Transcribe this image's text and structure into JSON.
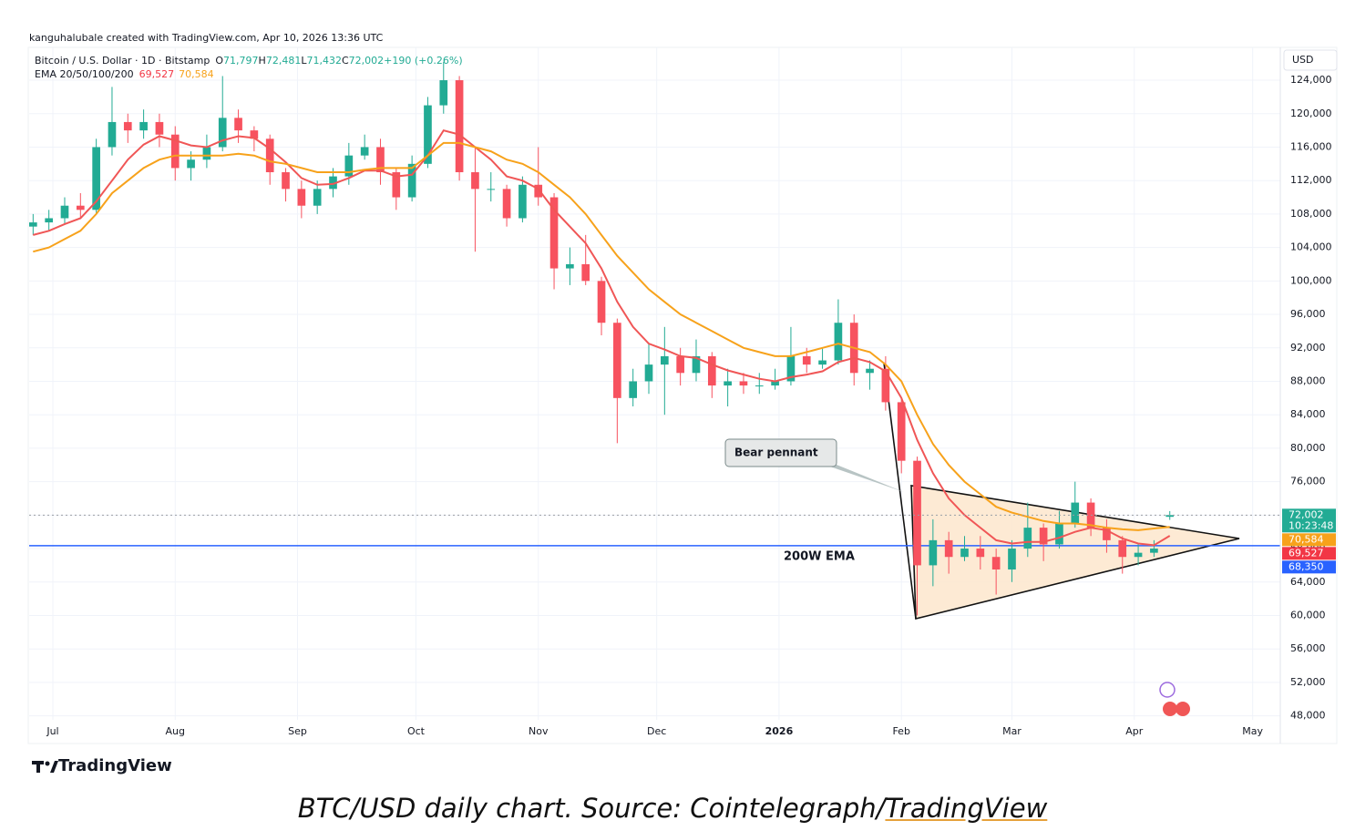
{
  "header": "kanguhalubale created with TradingView.com, Apr 10, 2026 13:36 UTC",
  "chart_data": {
    "type": "candlestick",
    "legend": {
      "symbol": "Bitcoin / U.S. Dollar · 1D · Bitstamp",
      "ohlc": [
        {
          "key": "O",
          "label": "71,797"
        },
        {
          "key": "H",
          "label": "72,481"
        },
        {
          "key": "L",
          "label": "71,432"
        },
        {
          "key": "C",
          "label": "72,002"
        }
      ],
      "change": "+190 (+0.26%)",
      "ema_name": "EMA 20/50/100/200"
    },
    "currency": "USD",
    "up_color": "#22ab94",
    "down_color": "#f7525f",
    "x": [
      -5,
      -1,
      3,
      7,
      11,
      15,
      19,
      23,
      27,
      31,
      35,
      39,
      43,
      47,
      51,
      55,
      59,
      63,
      67,
      71,
      75,
      79,
      83,
      87,
      91,
      95,
      99,
      103,
      107,
      111,
      115,
      119,
      123,
      127,
      131,
      135,
      139,
      143,
      147,
      151,
      155,
      159,
      163,
      167,
      171,
      175,
      179,
      183,
      187,
      191,
      195,
      199,
      203,
      207,
      211,
      215,
      219,
      223,
      227,
      231,
      235,
      239,
      243,
      247,
      251,
      255,
      259,
      263,
      267,
      271,
      275,
      279,
      283
    ],
    "open": [
      106500,
      107000,
      107500,
      109000,
      108500,
      116000,
      119000,
      118000,
      119000,
      117500,
      113500,
      114500,
      116000,
      119500,
      118000,
      117000,
      113000,
      111000,
      109000,
      111000,
      112500,
      115000,
      116000,
      113000,
      110000,
      114000,
      121000,
      124000,
      113000,
      111000,
      111000,
      107500,
      111500,
      110000,
      101500,
      102000,
      100000,
      95000,
      86000,
      88000,
      90000,
      91000,
      89000,
      91000,
      87500,
      88000,
      87500,
      87500,
      88000,
      91000,
      90000,
      90500,
      95000,
      89000,
      89500,
      85500,
      78500,
      66000,
      69000,
      67000,
      68000,
      67000,
      65500,
      68000,
      70500,
      68500,
      71000,
      73500,
      70500,
      69000,
      67000,
      67500,
      71797
    ],
    "high": [
      108000,
      108500,
      110000,
      110500,
      117000,
      123200,
      120000,
      120500,
      120000,
      118500,
      115500,
      117500,
      124500,
      120500,
      118500,
      117500,
      113500,
      112000,
      112000,
      113500,
      116500,
      117500,
      117000,
      113500,
      115000,
      122000,
      126200,
      124500,
      116000,
      113000,
      111500,
      112500,
      116000,
      110500,
      104000,
      105500,
      100500,
      95500,
      89500,
      92500,
      94500,
      92000,
      93000,
      91500,
      89500,
      89000,
      89000,
      89500,
      94500,
      92000,
      92000,
      97800,
      96000,
      90500,
      91000,
      86000,
      79000,
      71500,
      70000,
      69500,
      69500,
      68000,
      69000,
      73500,
      71000,
      72500,
      76000,
      74000,
      71500,
      69500,
      68500,
      69000,
      72481
    ],
    "low": [
      105500,
      106000,
      106800,
      107500,
      108000,
      115000,
      116500,
      117000,
      116000,
      112000,
      112000,
      113500,
      115500,
      116500,
      115500,
      111500,
      109500,
      107500,
      108000,
      110000,
      111500,
      114500,
      111500,
      108500,
      109500,
      113500,
      120000,
      112000,
      103500,
      109500,
      106500,
      107000,
      109000,
      99000,
      99500,
      99500,
      93500,
      80600,
      85000,
      86500,
      84000,
      87500,
      88000,
      86000,
      85000,
      86500,
      86500,
      87000,
      87500,
      89000,
      89500,
      90000,
      87500,
      87000,
      84500,
      77000,
      60000,
      63500,
      65000,
      66500,
      65500,
      62500,
      64000,
      67000,
      66500,
      68000,
      70500,
      69500,
      67500,
      65000,
      66000,
      67000,
      71432
    ],
    "close": [
      107000,
      107500,
      109000,
      108500,
      116000,
      119000,
      118000,
      119000,
      117500,
      113500,
      114500,
      116000,
      119500,
      118000,
      117000,
      113000,
      111000,
      109000,
      111000,
      112500,
      115000,
      116000,
      113000,
      110000,
      114000,
      121000,
      124000,
      113000,
      111000,
      111000,
      107500,
      111500,
      110000,
      101500,
      102000,
      100000,
      95000,
      86000,
      88000,
      90000,
      91000,
      89000,
      91000,
      87500,
      88000,
      87500,
      87500,
      88000,
      91000,
      90000,
      90500,
      95000,
      89000,
      89500,
      85500,
      78500,
      66000,
      69000,
      67000,
      68000,
      67000,
      65500,
      68000,
      70500,
      68500,
      71000,
      73500,
      70500,
      69000,
      67000,
      67500,
      68000,
      72002
    ],
    "lines": [
      {
        "color": "#f05656",
        "values": [
          105500,
          106000,
          106800,
          107500,
          109500,
          112000,
          114500,
          116300,
          117300,
          116800,
          116200,
          116000,
          116800,
          117300,
          117100,
          115800,
          114200,
          112300,
          111500,
          111600,
          112300,
          113200,
          113200,
          112500,
          112700,
          115000,
          118000,
          117500,
          116000,
          114500,
          112500,
          112000,
          111000,
          108500,
          106500,
          104500,
          101500,
          97500,
          94500,
          92500,
          91800,
          91000,
          90800,
          90000,
          89300,
          88800,
          88300,
          88000,
          88500,
          88800,
          89200,
          90300,
          90800,
          90300,
          89200,
          86000,
          81000,
          77000,
          74000,
          72000,
          70500,
          69000,
          68600,
          68800,
          68800,
          69300,
          70000,
          70500,
          70200,
          69200,
          68600,
          68400,
          69527
        ]
      },
      {
        "color": "#f7a21b",
        "values": [
          103500,
          104000,
          105000,
          106000,
          108000,
          110500,
          112000,
          113500,
          114500,
          115000,
          115000,
          115000,
          115000,
          115200,
          115000,
          114300,
          114000,
          113500,
          113000,
          113000,
          113000,
          113300,
          113500,
          113500,
          113500,
          115000,
          116500,
          116500,
          116000,
          115500,
          114500,
          114000,
          113000,
          111500,
          110000,
          108000,
          105500,
          103000,
          101000,
          99000,
          97500,
          96000,
          95000,
          94000,
          93000,
          92000,
          91500,
          91000,
          91000,
          91500,
          92000,
          92500,
          92000,
          91500,
          90000,
          88000,
          84000,
          80500,
          78000,
          76000,
          74500,
          73000,
          72300,
          71800,
          71300,
          71000,
          71000,
          70800,
          70500,
          70300,
          70200,
          70400,
          70584
        ]
      }
    ],
    "xlim": [
      -6,
      311
    ],
    "xticks": [
      {
        "value": 0,
        "label": "Jul"
      },
      {
        "value": 31,
        "label": "Aug"
      },
      {
        "value": 62,
        "label": "Sep"
      },
      {
        "value": 92,
        "label": "Oct"
      },
      {
        "value": 123,
        "label": "Nov"
      },
      {
        "value": 153,
        "label": "Dec"
      },
      {
        "value": 184,
        "label": "2026",
        "bold": true
      },
      {
        "value": 215,
        "label": "Feb"
      },
      {
        "value": 243,
        "label": "Mar"
      },
      {
        "value": 274,
        "label": "Apr"
      },
      {
        "value": 304,
        "label": "May"
      }
    ],
    "ylim": [
      44800,
      127600
    ],
    "yticks": [
      {
        "value": 48000,
        "label": "48,000"
      },
      {
        "value": 52000,
        "label": "52,000"
      },
      {
        "value": 56000,
        "label": "56,000"
      },
      {
        "value": 60000,
        "label": "60,000"
      },
      {
        "value": 64000,
        "label": "64,000"
      },
      {
        "value": 68000,
        "label": "68,000"
      },
      {
        "value": 72000,
        "label": "72,000"
      },
      {
        "value": 76000,
        "label": "76,000"
      },
      {
        "value": 80000,
        "label": "80,000"
      },
      {
        "value": 84000,
        "label": "84,000"
      },
      {
        "value": 88000,
        "label": "88,000"
      },
      {
        "value": 92000,
        "label": "92,000"
      },
      {
        "value": 96000,
        "label": "96,000"
      },
      {
        "value": 100000,
        "label": "100,000"
      },
      {
        "value": 104000,
        "label": "104,000"
      },
      {
        "value": 108000,
        "label": "108,000"
      },
      {
        "value": 112000,
        "label": "112,000"
      },
      {
        "value": 116000,
        "label": "116,000"
      },
      {
        "value": 120000,
        "label": "120,000"
      },
      {
        "value": 124000,
        "label": "124,000"
      }
    ],
    "grid": true,
    "hlines": [
      {
        "label": "200W EMA",
        "value": 68350,
        "color": "#2962ff"
      }
    ],
    "price_tags": [
      {
        "value": 72002,
        "label": "72,002",
        "color": "#22ab94"
      },
      {
        "value": 70584,
        "label": "70,584",
        "color": "#f7a21b"
      },
      {
        "value": 69527,
        "label": "69,527",
        "color": "#f23645"
      },
      {
        "value": 68350,
        "label": "68,350",
        "color": "#2962ff"
      }
    ],
    "countdown": "10:23:48",
    "annotation": "Bear pennant"
  },
  "logo": "TradingView",
  "caption": {
    "text": "BTC/USD daily chart. Source: Cointelegraph/",
    "link": "TradingView"
  }
}
